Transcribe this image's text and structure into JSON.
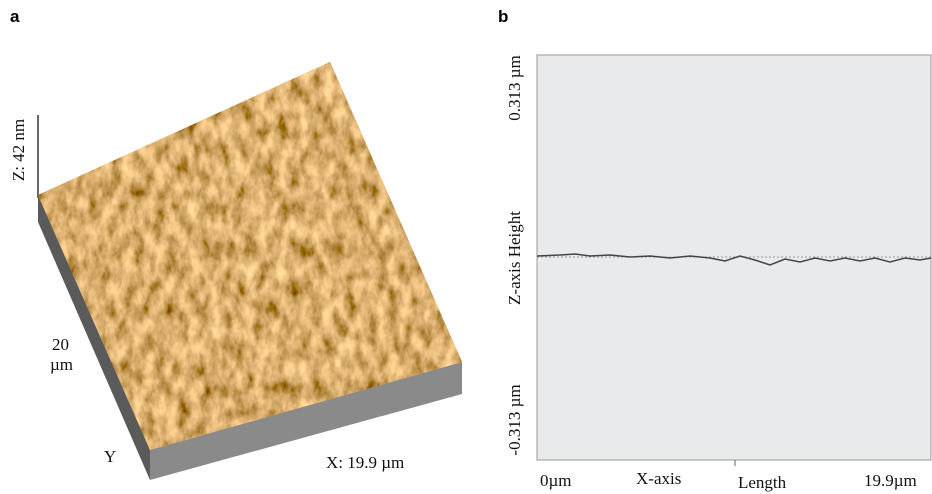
{
  "panel_a": {
    "label": "a",
    "z_scale": "Z: 42 nm",
    "y_size": [
      "20",
      "µm"
    ],
    "y_axis": "Y",
    "x_size": "X: 19.9 µm"
  },
  "panel_b": {
    "label": "b",
    "y_top": "0.313 µm",
    "y_title": "Z-axis Height",
    "y_bottom": "-0.313 µm",
    "x_start": "0µm",
    "x_title": "X-axis",
    "x_middle": "Length",
    "x_end": "19.9µm"
  }
}
